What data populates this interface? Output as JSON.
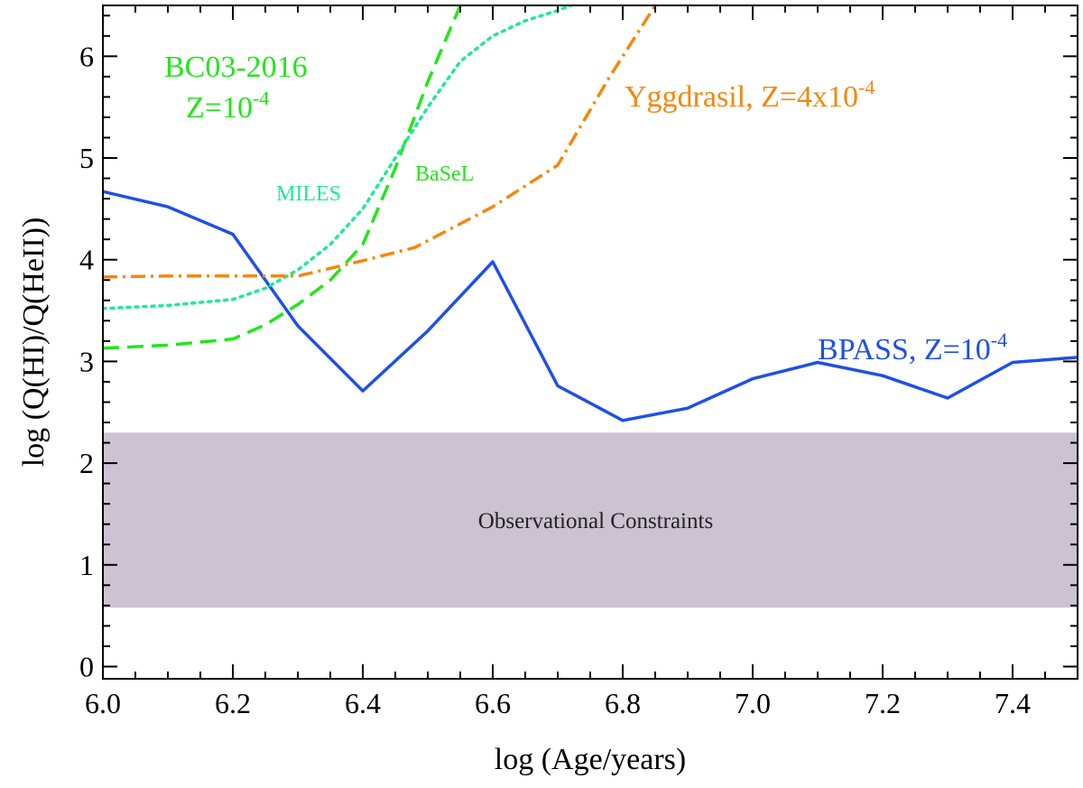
{
  "chart_data": {
    "type": "line",
    "xlabel": "log (Age/years)",
    "ylabel": "log (Q(HI)/Q(HeII))",
    "xlim": [
      6.0,
      7.5
    ],
    "ylim": [
      -0.12,
      6.5
    ],
    "x_ticks": [
      6.0,
      6.2,
      6.4,
      6.6,
      6.8,
      7.0,
      7.2,
      7.4
    ],
    "x_tick_labels": [
      "6.0",
      "6.2",
      "6.4",
      "6.6",
      "6.8",
      "7.0",
      "7.2",
      "7.4"
    ],
    "y_ticks": [
      0,
      1,
      2,
      3,
      4,
      5,
      6
    ],
    "y_tick_labels": [
      "0",
      "1",
      "2",
      "3",
      "4",
      "5",
      "6"
    ],
    "band": {
      "label": "Observational Constraints",
      "ymin": 0.58,
      "ymax": 2.3,
      "color": "#cbc3d1"
    },
    "series": [
      {
        "name": "BPASS",
        "label": "BPASS, Z=10",
        "label_sup": "-4",
        "color": "#1f4fe8",
        "style": "solid",
        "x": [
          6.0,
          6.1,
          6.2,
          6.3,
          6.4,
          6.5,
          6.6,
          6.7,
          6.8,
          6.9,
          7.0,
          7.1,
          7.2,
          7.3,
          7.4,
          7.5
        ],
        "y": [
          4.67,
          4.52,
          4.25,
          3.35,
          2.71,
          3.3,
          3.98,
          2.76,
          2.42,
          2.54,
          2.83,
          2.99,
          2.86,
          2.64,
          2.99,
          3.04
        ]
      },
      {
        "name": "BC03-2016 BaSeL",
        "label": "BaSeL",
        "color": "#22e61a",
        "style": "dashed",
        "x": [
          6.0,
          6.1,
          6.2,
          6.25,
          6.3,
          6.35,
          6.4,
          6.45,
          6.5,
          6.55
        ],
        "y": [
          3.13,
          3.16,
          3.22,
          3.36,
          3.56,
          3.8,
          4.15,
          4.9,
          5.75,
          6.5
        ]
      },
      {
        "name": "BC03-2016 MILES",
        "label": "MILES",
        "color": "#1fe89a",
        "style": "dotted",
        "x": [
          6.0,
          6.1,
          6.2,
          6.25,
          6.3,
          6.35,
          6.4,
          6.45,
          6.5,
          6.55,
          6.6,
          6.65,
          6.7,
          6.72
        ],
        "y": [
          3.52,
          3.55,
          3.61,
          3.72,
          3.9,
          4.15,
          4.5,
          5.0,
          5.5,
          5.95,
          6.2,
          6.35,
          6.45,
          6.5
        ]
      },
      {
        "name": "Yggdrasil",
        "label": "Yggdrasil, Z=4x10",
        "label_sup": "-4",
        "color": "#f6860d",
        "style": "dashdot",
        "x": [
          6.0,
          6.1,
          6.2,
          6.3,
          6.4,
          6.48,
          6.6,
          6.7,
          6.78,
          6.85
        ],
        "y": [
          3.83,
          3.84,
          3.84,
          3.84,
          3.99,
          4.12,
          4.52,
          4.93,
          5.8,
          6.5
        ]
      }
    ],
    "annotations": {
      "bc03_line1": "BC03-2016",
      "bc03_line2": "Z=10",
      "bc03_sup": "-4"
    }
  }
}
